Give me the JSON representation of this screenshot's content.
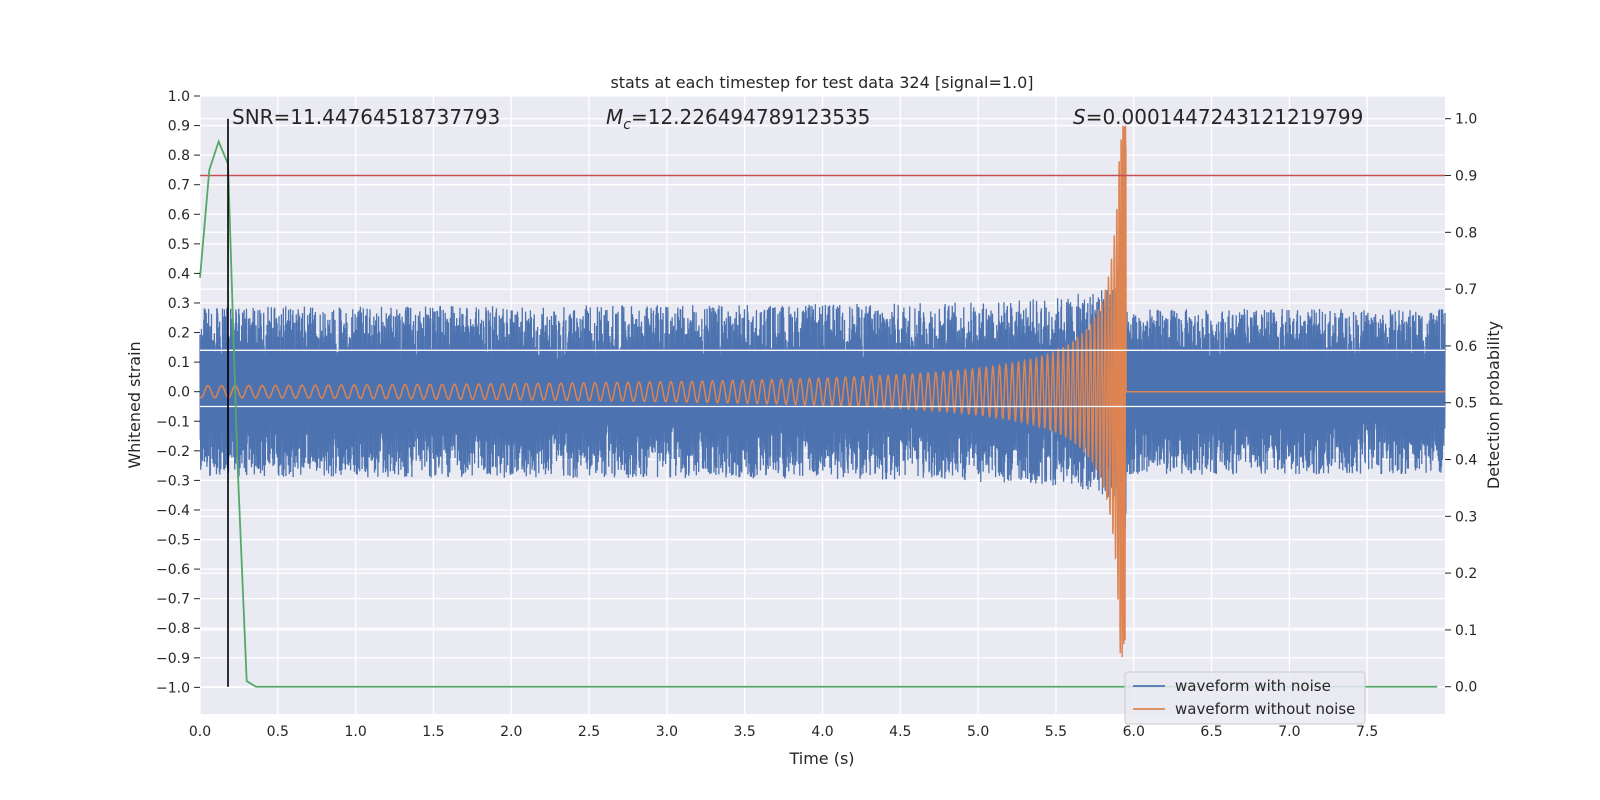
{
  "chart_data": {
    "type": "line",
    "title": "stats at each timestep for test data 324 [signal=1.0]",
    "xlabel": "Time (s)",
    "ylabel": "Whitened strain",
    "y2label": "Detection probability",
    "xlim": [
      0,
      8
    ],
    "ylim": [
      -1.09,
      1.0
    ],
    "y2lim": [
      -0.048,
      1.04
    ],
    "xticks": [
      "0.0",
      "0.5",
      "1.0",
      "1.5",
      "2.0",
      "2.5",
      "3.0",
      "3.5",
      "4.0",
      "4.5",
      "5.0",
      "5.5",
      "6.0",
      "6.5",
      "7.0",
      "7.5"
    ],
    "yticks": [
      "1.0",
      "0.9",
      "0.8",
      "0.7",
      "0.6",
      "0.5",
      "0.4",
      "0.3",
      "0.2",
      "0.1",
      "0.0",
      "−0.1",
      "−0.2",
      "−0.3",
      "−0.4",
      "−0.5",
      "−0.6",
      "−0.7",
      "−0.8",
      "−0.9",
      "−1.0"
    ],
    "y2ticks": [
      "1.0",
      "0.9",
      "0.8",
      "0.7",
      "0.6",
      "0.5",
      "0.4",
      "0.3",
      "0.2",
      "0.1",
      "0.0"
    ],
    "grid": true,
    "legend_position": "lower-right",
    "annotations": {
      "snr": "SNR=11.44764518737793",
      "mc_symbol": "M",
      "mc_sub": "c",
      "mc_value": "=12.226494789123535",
      "s_symbol": "S",
      "s_value": "=0.00014472431212197​99"
    },
    "threshold": 0.9,
    "marker_time": 0.18,
    "merger_time": 5.95,
    "noise_band": {
      "upper": 0.14,
      "lower": -0.05
    },
    "series": [
      {
        "name": "waveform with noise",
        "color": "#4c72b0",
        "noise_amplitude": 0.28,
        "peak": 0.78
      },
      {
        "name": "waveform without noise",
        "color": "#dd8452",
        "start_amplitude": 0.02,
        "peak": 0.9
      },
      {
        "name": "",
        "color": "#55a868",
        "axis": "right",
        "x": [
          0.0,
          0.06,
          0.12,
          0.18,
          0.24,
          0.3,
          0.36,
          0.42,
          7.95
        ],
        "values": [
          0.72,
          0.91,
          0.96,
          0.92,
          0.4,
          0.01,
          0.0,
          0.0,
          0.0
        ]
      },
      {
        "name": "",
        "color": "#c44e52",
        "axis": "right",
        "type": "hline",
        "value": 0.9
      }
    ]
  }
}
